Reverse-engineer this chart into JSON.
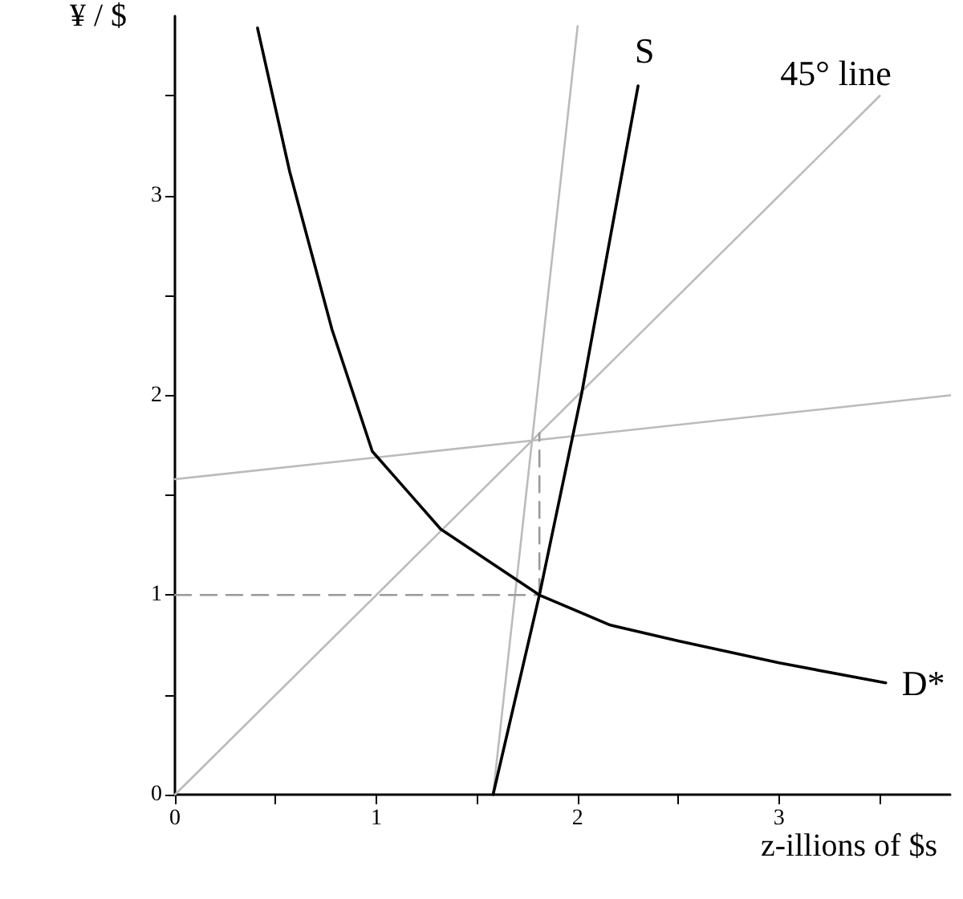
{
  "chart_data": {
    "type": "line",
    "xlabel": "z-illions of $s",
    "ylabel": "¥ / $",
    "marker": "none",
    "xlim": [
      0,
      3.85
    ],
    "ylim": [
      0,
      3.9
    ],
    "xticks": [
      0,
      {
        "value": 0.5,
        "label": null
      },
      1,
      {
        "value": 1.5,
        "label": null
      },
      2,
      {
        "value": 2.5,
        "label": null
      },
      3,
      {
        "value": 3.5,
        "label": null
      }
    ],
    "yticks": [
      0,
      {
        "value": 0.5,
        "label": null
      },
      1,
      {
        "value": 1.5,
        "label": null
      },
      2,
      {
        "value": 2.5,
        "label": null
      },
      3,
      {
        "value": 3.5,
        "label": null
      }
    ],
    "series": [
      {
        "name": "45° line",
        "color": "#bbbbbb",
        "x": [
          0,
          3.5
        ],
        "values": [
          0,
          3.5
        ]
      },
      {
        "color": "#bbbbbb",
        "x": [
          0,
          3.85
        ],
        "values": [
          1.58,
          2.0
        ]
      },
      {
        "color": "#bbbbbb",
        "x": [
          1.58,
          2.0
        ],
        "values": [
          0,
          3.85
        ]
      },
      {
        "color": "#999999",
        "line_style": "dashed",
        "x": [
          0,
          1.81
        ],
        "values": [
          1,
          1
        ]
      },
      {
        "color": "#999999",
        "line_style": "dashed",
        "x": [
          1.81,
          1.81
        ],
        "values": [
          1,
          1.81
        ]
      },
      {
        "name": "D*",
        "color": "#000000",
        "x": [
          0.41,
          0.57,
          0.78,
          0.98,
          1.32,
          1.81,
          2.16,
          2.5,
          3.0,
          3.53
        ],
        "values": [
          3.84,
          3.12,
          2.33,
          1.72,
          1.33,
          1,
          0.85,
          0.77,
          0.66,
          0.56
        ]
      },
      {
        "name": "S",
        "color": "#000000",
        "x": [
          1.58,
          1.81,
          2.02,
          2.3
        ],
        "values": [
          0,
          1,
          2.01,
          3.55
        ]
      }
    ]
  }
}
